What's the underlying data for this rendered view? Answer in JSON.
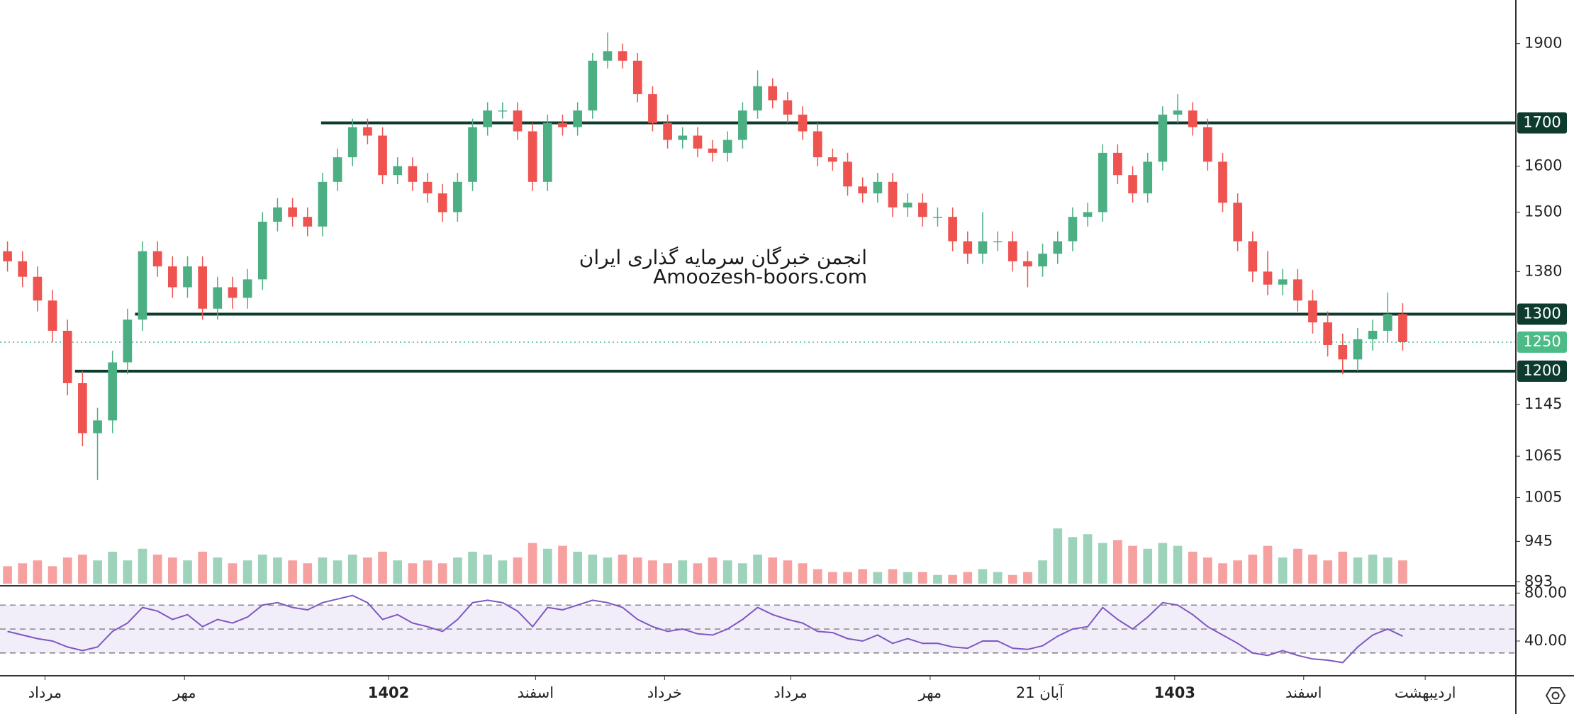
{
  "chart_data": {
    "type": "candlestick",
    "log_scale": true,
    "xlim": [
      -0.5,
      100.4
    ],
    "ylim": [
      888,
      2020
    ],
    "yticks": [
      1900,
      1600,
      1500,
      1380,
      1145,
      1065,
      1005,
      945,
      893
    ],
    "xticks": [
      {
        "value": 2.5,
        "label": "مرداد"
      },
      {
        "value": 11.8,
        "label": "مهر"
      },
      {
        "value": 25.4,
        "label": "1402",
        "bold": true
      },
      {
        "value": 35.2,
        "label": "اسفند"
      },
      {
        "value": 43.8,
        "label": "خرداد"
      },
      {
        "value": 52.2,
        "label": "مرداد"
      },
      {
        "value": 61.5,
        "label": "مهر"
      },
      {
        "value": 68.8,
        "label": "21 آبان"
      },
      {
        "value": 77.8,
        "label": "1403",
        "bold": true
      },
      {
        "value": 86.4,
        "label": "اسفند"
      },
      {
        "value": 94.5,
        "label": "اردیبهشت"
      }
    ],
    "up_color": "#4caf84",
    "down_color": "#ef5350",
    "open": [
      1420,
      1400,
      1370,
      1325,
      1270,
      1180,
      1100,
      1120,
      1215,
      1290,
      1420,
      1390,
      1350,
      1390,
      1310,
      1350,
      1330,
      1365,
      1480,
      1510,
      1490,
      1470,
      1565,
      1620,
      1690,
      1670,
      1580,
      1600,
      1565,
      1540,
      1500,
      1565,
      1690,
      1730,
      1730,
      1680,
      1565,
      1700,
      1690,
      1730,
      1855,
      1880,
      1855,
      1770,
      1700,
      1660,
      1670,
      1640,
      1630,
      1660,
      1730,
      1790,
      1755,
      1720,
      1680,
      1620,
      1610,
      1555,
      1540,
      1565,
      1510,
      1520,
      1490,
      1490,
      1440,
      1415,
      1440,
      1440,
      1400,
      1390,
      1415,
      1440,
      1490,
      1500,
      1630,
      1580,
      1540,
      1610,
      1720,
      1730,
      1690,
      1610,
      1520,
      1440,
      1380,
      1355,
      1365,
      1325,
      1285,
      1245,
      1220,
      1255,
      1270,
      1300
    ],
    "high": [
      1440,
      1420,
      1390,
      1345,
      1290,
      1200,
      1140,
      1235,
      1310,
      1440,
      1440,
      1410,
      1410,
      1410,
      1370,
      1370,
      1385,
      1500,
      1530,
      1530,
      1510,
      1585,
      1640,
      1710,
      1710,
      1690,
      1620,
      1620,
      1585,
      1560,
      1585,
      1710,
      1750,
      1750,
      1750,
      1700,
      1720,
      1720,
      1750,
      1875,
      1930,
      1900,
      1875,
      1790,
      1720,
      1690,
      1690,
      1660,
      1680,
      1750,
      1830,
      1810,
      1775,
      1740,
      1700,
      1640,
      1630,
      1575,
      1585,
      1585,
      1540,
      1540,
      1510,
      1510,
      1460,
      1500,
      1460,
      1460,
      1420,
      1435,
      1460,
      1510,
      1520,
      1650,
      1650,
      1600,
      1630,
      1740,
      1770,
      1750,
      1710,
      1630,
      1540,
      1460,
      1420,
      1385,
      1385,
      1345,
      1305,
      1265,
      1275,
      1290,
      1340,
      1320
    ],
    "low": [
      1380,
      1350,
      1305,
      1250,
      1160,
      1080,
      1030,
      1100,
      1195,
      1270,
      1370,
      1330,
      1330,
      1290,
      1290,
      1310,
      1310,
      1345,
      1460,
      1470,
      1450,
      1450,
      1545,
      1600,
      1650,
      1560,
      1560,
      1545,
      1520,
      1480,
      1480,
      1545,
      1670,
      1710,
      1660,
      1545,
      1545,
      1670,
      1670,
      1710,
      1835,
      1835,
      1750,
      1680,
      1640,
      1640,
      1620,
      1610,
      1610,
      1640,
      1710,
      1735,
      1700,
      1660,
      1600,
      1590,
      1535,
      1520,
      1520,
      1490,
      1490,
      1470,
      1470,
      1420,
      1395,
      1395,
      1420,
      1380,
      1350,
      1370,
      1395,
      1420,
      1470,
      1480,
      1560,
      1520,
      1520,
      1590,
      1700,
      1670,
      1590,
      1500,
      1420,
      1360,
      1335,
      1335,
      1305,
      1265,
      1225,
      1195,
      1200,
      1235,
      1250,
      1235
    ],
    "close": [
      1400,
      1370,
      1325,
      1270,
      1180,
      1100,
      1120,
      1215,
      1290,
      1420,
      1390,
      1350,
      1390,
      1310,
      1350,
      1330,
      1365,
      1480,
      1510,
      1490,
      1470,
      1565,
      1620,
      1690,
      1670,
      1580,
      1600,
      1565,
      1540,
      1500,
      1565,
      1690,
      1730,
      1730,
      1680,
      1565,
      1700,
      1690,
      1730,
      1855,
      1880,
      1855,
      1770,
      1700,
      1660,
      1670,
      1640,
      1630,
      1660,
      1730,
      1790,
      1755,
      1720,
      1680,
      1620,
      1610,
      1555,
      1540,
      1565,
      1510,
      1520,
      1490,
      1490,
      1440,
      1415,
      1440,
      1440,
      1400,
      1390,
      1415,
      1440,
      1490,
      1500,
      1630,
      1580,
      1540,
      1610,
      1720,
      1730,
      1690,
      1610,
      1520,
      1440,
      1380,
      1355,
      1365,
      1325,
      1285,
      1245,
      1220,
      1255,
      1270,
      1300,
      1250
    ],
    "volume": [
      30,
      35,
      40,
      30,
      45,
      50,
      40,
      55,
      40,
      60,
      50,
      45,
      40,
      55,
      45,
      35,
      40,
      50,
      45,
      40,
      35,
      45,
      40,
      50,
      45,
      55,
      40,
      35,
      40,
      35,
      45,
      55,
      50,
      40,
      45,
      70,
      60,
      65,
      55,
      50,
      45,
      50,
      45,
      40,
      35,
      40,
      35,
      45,
      40,
      35,
      50,
      45,
      40,
      35,
      25,
      20,
      20,
      25,
      20,
      25,
      20,
      20,
      15,
      15,
      20,
      25,
      20,
      15,
      20,
      40,
      95,
      80,
      85,
      70,
      75,
      65,
      60,
      70,
      65,
      55,
      45,
      35,
      40,
      50,
      65,
      45,
      60,
      50,
      40,
      55,
      45,
      50,
      45,
      40
    ],
    "levels": [
      {
        "value": 1700,
        "from": 20.9,
        "color": "#0d3b2e"
      },
      {
        "value": 1300,
        "from": 8.5,
        "color": "#0d3b2e"
      },
      {
        "value": 1200,
        "from": 4.5,
        "color": "#0d3b2e"
      }
    ],
    "last_price": {
      "value": 1250,
      "color": "#4cbb87"
    },
    "rsi": {
      "values": [
        48,
        45,
        42,
        40,
        35,
        32,
        35,
        48,
        55,
        68,
        65,
        58,
        62,
        52,
        58,
        55,
        60,
        70,
        72,
        68,
        66,
        72,
        75,
        78,
        72,
        58,
        62,
        55,
        52,
        48,
        58,
        72,
        74,
        72,
        65,
        52,
        68,
        66,
        70,
        74,
        72,
        68,
        58,
        52,
        48,
        50,
        46,
        45,
        50,
        58,
        68,
        62,
        58,
        55,
        48,
        47,
        42,
        40,
        45,
        38,
        42,
        38,
        38,
        35,
        34,
        40,
        40,
        34,
        33,
        36,
        44,
        50,
        52,
        68,
        58,
        50,
        60,
        72,
        70,
        62,
        52,
        45,
        38,
        30,
        28,
        32,
        28,
        25,
        24,
        22,
        35,
        45,
        50,
        44
      ],
      "ylim": [
        12.2,
        84.9
      ],
      "yticks": [
        {
          "value": 80,
          "label": "80.00"
        },
        {
          "value": 40,
          "label": "40.00"
        }
      ],
      "bands": [
        70,
        50,
        30
      ],
      "color": "#7e57c2"
    },
    "watermark": [
      "انجمن خبرگان سرمایه گذاری ایران",
      "Amoozesh-boors.com"
    ]
  }
}
